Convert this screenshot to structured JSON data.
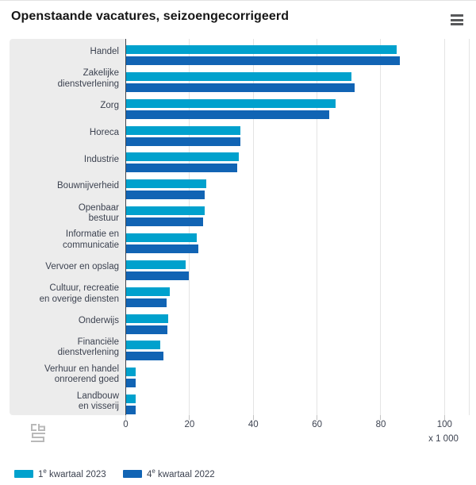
{
  "title": "Openstaande vacatures, seizoengecorrigeerd",
  "menu": {
    "icon": "hamburger-icon"
  },
  "colors": {
    "series1": "#00a1cd",
    "series2": "#1164b4",
    "panel_bg": "#ececec",
    "grid": "#e4e4e4",
    "axis": "#41454c",
    "text": "#3c4250"
  },
  "x_axis": {
    "tick_values": [
      0,
      20,
      40,
      60,
      80,
      100
    ],
    "tick_labels": [
      "0",
      "20",
      "40",
      "60",
      "80",
      "100"
    ],
    "unit_label": "x 1 000"
  },
  "legend": {
    "items": [
      {
        "num": "1",
        "sup": "e",
        "rest": " kwartaal 2023",
        "color": "#00a1cd"
      },
      {
        "num": "4",
        "sup": "e",
        "rest": " kwartaal 2022",
        "color": "#1164b4"
      }
    ]
  },
  "logo": {
    "name": "cbs-logo"
  },
  "chart_data": {
    "type": "bar",
    "orientation": "horizontal",
    "title": "Openstaande vacatures, seizoengecorrigeerd",
    "xlabel": "x 1 000",
    "xlim": [
      0,
      108
    ],
    "grid": true,
    "legend_position": "bottom",
    "categories": [
      "Handel",
      "Zakelijke dienstverlening",
      "Zorg",
      "Horeca",
      "Industrie",
      "Bouwnijverheid",
      "Openbaar bestuur",
      "Informatie en communicatie",
      "Vervoer en opslag",
      "Cultuur, recreatie en overige diensten",
      "Onderwijs",
      "Financiële dienstverlening",
      "Verhuur en handel onroerend goed",
      "Landbouw en visserij"
    ],
    "categories_lines": [
      [
        "Handel"
      ],
      [
        "Zakelijke",
        "dienstverlening"
      ],
      [
        "Zorg"
      ],
      [
        "Horeca"
      ],
      [
        "Industrie"
      ],
      [
        "Bouwnijverheid"
      ],
      [
        "Openbaar",
        "bestuur"
      ],
      [
        "Informatie en",
        "communicatie"
      ],
      [
        "Vervoer en opslag"
      ],
      [
        "Cultuur, recreatie",
        "en overige diensten"
      ],
      [
        "Onderwijs"
      ],
      [
        "Financiële",
        "dienstverlening"
      ],
      [
        "Verhuur en handel",
        "onroerend goed"
      ],
      [
        "Landbouw",
        "en visserij"
      ]
    ],
    "series": [
      {
        "name": "1e kwartaal 2023",
        "color": "#00a1cd",
        "values": [
          85,
          71,
          66,
          36,
          35.5,
          25.5,
          25,
          22.5,
          19,
          14,
          13.5,
          11,
          3.2,
          3.2
        ]
      },
      {
        "name": "4e kwartaal 2022",
        "color": "#1164b4",
        "values": [
          86,
          72,
          64,
          36,
          35,
          25,
          24.5,
          23,
          20,
          13,
          13.2,
          12,
          3.3,
          3.3
        ]
      }
    ]
  }
}
